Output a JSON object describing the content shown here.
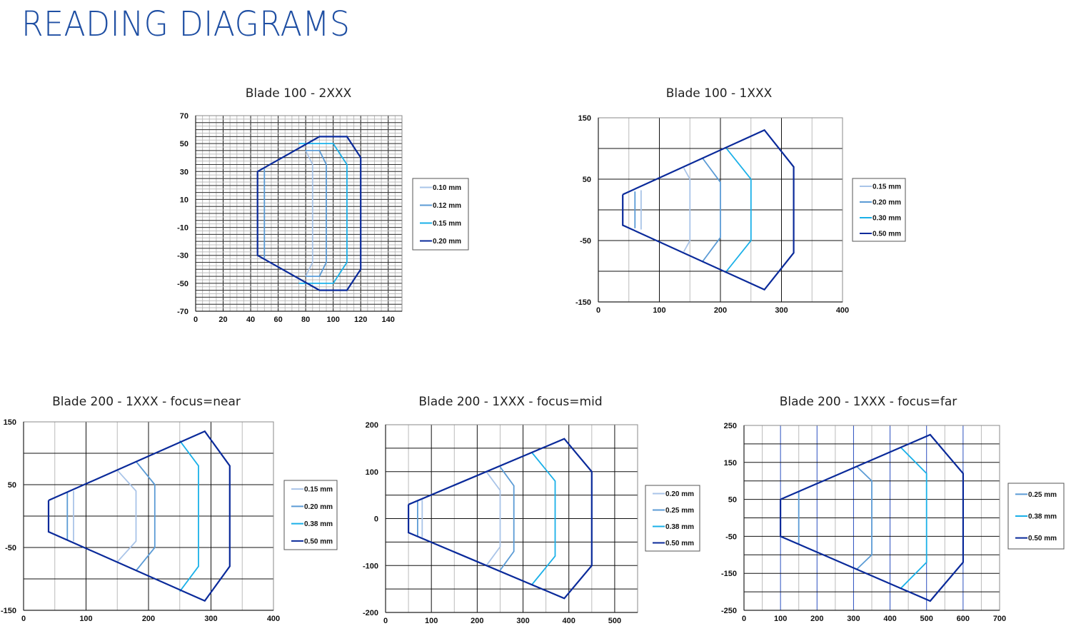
{
  "page": {
    "title": "READING DIAGRAMS",
    "accent_color": "#1f4fa3"
  },
  "series_colors": {
    "lightest": "#a9c4e8",
    "light": "#5b9bd5",
    "cyan": "#1ab0e8",
    "dark": "#0a2a9a"
  },
  "charts": [
    {
      "title": "Blade 100 - 2XXX"
    },
    {
      "title": "Blade 100 - 1XXX"
    },
    {
      "title": "Blade 200 - 1XXX - focus=near"
    },
    {
      "title": "Blade 200 - 1XXX - focus=mid"
    },
    {
      "title": "Blade 200 - 1XXX - focus=far"
    }
  ],
  "chart_data": [
    {
      "type": "line",
      "title": "Blade 100 - 2XXX",
      "xlabel": "",
      "ylabel": "",
      "xlim": [
        0,
        150
      ],
      "ylim": [
        -70,
        70
      ],
      "xticks": [
        0,
        20,
        40,
        60,
        80,
        100,
        120,
        140
      ],
      "yticks": [
        70,
        50,
        30,
        10,
        -10,
        -30,
        -50,
        -70
      ],
      "grid": true,
      "legend_position": "right",
      "series": [
        {
          "name": "0.10 mm",
          "color": "#a9c4e8",
          "paths": [
            [
              [
                80,
                45
              ],
              [
                85,
                35
              ],
              [
                85,
                -35
              ],
              [
                80,
                -45
              ]
            ]
          ]
        },
        {
          "name": "0.12 mm",
          "color": "#5b9bd5",
          "paths": [
            [
              [
                50,
                32
              ],
              [
                50,
                -32
              ]
            ],
            [
              [
                80,
                45
              ],
              [
                90,
                45
              ],
              [
                95,
                35
              ],
              [
                95,
                -35
              ],
              [
                90,
                -45
              ],
              [
                80,
                -45
              ]
            ]
          ]
        },
        {
          "name": "0.15 mm",
          "color": "#1ab0e8",
          "paths": [
            [
              [
                75,
                50
              ],
              [
                100,
                50
              ],
              [
                110,
                35
              ],
              [
                110,
                -35
              ],
              [
                100,
                -50
              ],
              [
                75,
                -50
              ]
            ]
          ]
        },
        {
          "name": "0.20 mm",
          "color": "#0a2a9a",
          "paths": [
            [
              [
                45,
                30
              ],
              [
                90,
                55
              ],
              [
                110,
                55
              ],
              [
                120,
                40
              ],
              [
                120,
                -40
              ],
              [
                110,
                -55
              ],
              [
                90,
                -55
              ],
              [
                45,
                -30
              ],
              [
                45,
                30
              ]
            ]
          ]
        }
      ]
    },
    {
      "type": "line",
      "title": "Blade 100 - 1XXX",
      "xlabel": "",
      "ylabel": "",
      "xlim": [
        0,
        400
      ],
      "ylim": [
        -150,
        150
      ],
      "xticks": [
        0,
        100,
        200,
        300,
        400
      ],
      "yticks": [
        150,
        50,
        -50,
        -150
      ],
      "grid": true,
      "legend_position": "right",
      "series": [
        {
          "name": "0.15 mm",
          "color": "#a9c4e8",
          "paths": [
            [
              [
                70,
                32
              ],
              [
                70,
                -32
              ]
            ],
            [
              [
                140,
                68
              ],
              [
                150,
                50
              ],
              [
                150,
                -50
              ],
              [
                140,
                -68
              ]
            ]
          ]
        },
        {
          "name": "0.20 mm",
          "color": "#5b9bd5",
          "paths": [
            [
              [
                60,
                30
              ],
              [
                60,
                -30
              ]
            ],
            [
              [
                170,
                85
              ],
              [
                200,
                45
              ],
              [
                200,
                -45
              ],
              [
                170,
                -85
              ]
            ]
          ]
        },
        {
          "name": "0.30 mm",
          "color": "#1ab0e8",
          "paths": [
            [
              [
                210,
                100
              ],
              [
                250,
                50
              ],
              [
                250,
                -50
              ],
              [
                210,
                -100
              ]
            ]
          ]
        },
        {
          "name": "0.50 mm",
          "color": "#0a2a9a",
          "paths": [
            [
              [
                40,
                25
              ],
              [
                272,
                130
              ],
              [
                320,
                70
              ],
              [
                320,
                -70
              ],
              [
                272,
                -130
              ],
              [
                40,
                -25
              ],
              [
                40,
                25
              ]
            ]
          ]
        }
      ]
    },
    {
      "type": "line",
      "title": "Blade 200 - 1XXX - focus=near",
      "xlabel": "",
      "ylabel": "",
      "xlim": [
        0,
        400
      ],
      "ylim": [
        -150,
        150
      ],
      "xticks": [
        0,
        100,
        200,
        300,
        400
      ],
      "yticks": [
        150,
        50,
        -50,
        -150
      ],
      "grid": true,
      "legend_position": "right",
      "series": [
        {
          "name": "0.15 mm",
          "color": "#a9c4e8",
          "paths": [
            [
              [
                80,
                40
              ],
              [
                80,
                -40
              ]
            ],
            [
              [
                150,
                73
              ],
              [
                180,
                40
              ],
              [
                180,
                -40
              ],
              [
                150,
                -73
              ]
            ]
          ]
        },
        {
          "name": "0.20 mm",
          "color": "#5b9bd5",
          "paths": [
            [
              [
                70,
                38
              ],
              [
                70,
                -38
              ]
            ],
            [
              [
                180,
                87
              ],
              [
                210,
                50
              ],
              [
                210,
                -50
              ],
              [
                180,
                -87
              ]
            ]
          ]
        },
        {
          "name": "0.38 mm",
          "color": "#1ab0e8",
          "paths": [
            [
              [
                250,
                120
              ],
              [
                280,
                80
              ],
              [
                280,
                -80
              ],
              [
                250,
                -120
              ]
            ]
          ]
        },
        {
          "name": "0.50 mm",
          "color": "#0a2a9a",
          "paths": [
            [
              [
                40,
                25
              ],
              [
                290,
                135
              ],
              [
                330,
                80
              ],
              [
                330,
                -80
              ],
              [
                290,
                -135
              ],
              [
                40,
                -25
              ],
              [
                40,
                25
              ]
            ]
          ]
        }
      ]
    },
    {
      "type": "line",
      "title": "Blade 200 - 1XXX - focus=mid",
      "xlabel": "",
      "ylabel": "",
      "xlim": [
        0,
        550
      ],
      "ylim": [
        -200,
        200
      ],
      "xticks": [
        0,
        100,
        200,
        300,
        400,
        500
      ],
      "yticks": [
        200,
        100,
        0,
        -100,
        -200
      ],
      "grid": true,
      "legend_position": "right",
      "series": [
        {
          "name": "0.20 mm",
          "color": "#a9c4e8",
          "paths": [
            [
              [
                80,
                40
              ],
              [
                80,
                -40
              ]
            ],
            [
              [
                220,
                100
              ],
              [
                250,
                60
              ],
              [
                250,
                -60
              ],
              [
                220,
                -100
              ]
            ]
          ]
        },
        {
          "name": "0.25 mm",
          "color": "#5b9bd5",
          "paths": [
            [
              [
                70,
                37
              ],
              [
                70,
                -37
              ]
            ],
            [
              [
                250,
                110
              ],
              [
                280,
                70
              ],
              [
                280,
                -70
              ],
              [
                250,
                -110
              ]
            ]
          ]
        },
        {
          "name": "0.38 mm",
          "color": "#1ab0e8",
          "paths": [
            [
              [
                320,
                140
              ],
              [
                370,
                80
              ],
              [
                370,
                -80
              ],
              [
                320,
                -140
              ]
            ]
          ]
        },
        {
          "name": "0.50 mm",
          "color": "#0a2a9a",
          "paths": [
            [
              [
                50,
                30
              ],
              [
                390,
                170
              ],
              [
                450,
                100
              ],
              [
                450,
                -100
              ],
              [
                390,
                -170
              ],
              [
                50,
                -30
              ],
              [
                50,
                30
              ]
            ]
          ]
        }
      ]
    },
    {
      "type": "line",
      "title": "Blade 200 - 1XXX - focus=far",
      "xlabel": "",
      "ylabel": "",
      "xlim": [
        0,
        700
      ],
      "ylim": [
        -250,
        250
      ],
      "xticks": [
        0,
        100,
        200,
        300,
        400,
        500,
        600,
        700
      ],
      "yticks": [
        250,
        150,
        50,
        -50,
        -150,
        -250
      ],
      "grid": true,
      "legend_position": "right",
      "series": [
        {
          "name": "0.25 mm",
          "color": "#5b9bd5",
          "paths": [
            [
              [
                150,
                72
              ],
              [
                150,
                -72
              ]
            ],
            [
              [
                310,
                138
              ],
              [
                350,
                100
              ],
              [
                350,
                -100
              ],
              [
                310,
                -138
              ]
            ]
          ]
        },
        {
          "name": "0.38 mm",
          "color": "#1ab0e8",
          "paths": [
            [
              [
                430,
                190
              ],
              [
                500,
                120
              ],
              [
                500,
                -120
              ],
              [
                430,
                -190
              ]
            ]
          ]
        },
        {
          "name": "0.50 mm",
          "color": "#0a2a9a",
          "paths": [
            [
              [
                100,
                50
              ],
              [
                510,
                225
              ],
              [
                600,
                120
              ],
              [
                600,
                -120
              ],
              [
                510,
                -225
              ],
              [
                100,
                -50
              ],
              [
                100,
                50
              ]
            ]
          ]
        }
      ]
    }
  ]
}
